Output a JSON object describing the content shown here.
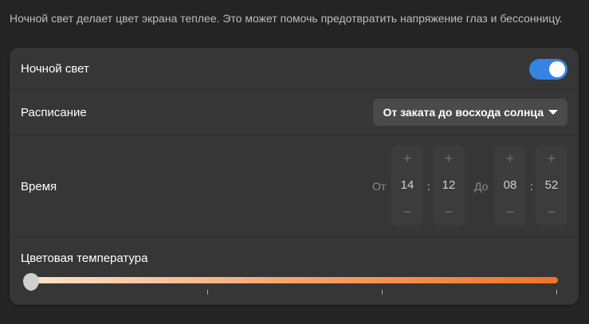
{
  "description": "Ночной свет делает цвет экрана теплее. Это может помочь предотвратить напряжение глаз и бессонницу.",
  "night_light": {
    "label": "Ночной свет",
    "enabled": true,
    "accent": "#3584e4"
  },
  "schedule": {
    "label": "Расписание",
    "value": "От заката до восхода солнца"
  },
  "time": {
    "label": "Время",
    "from_label": "От",
    "to_label": "До",
    "from_hour": "14",
    "from_minute": "12",
    "to_hour": "08",
    "to_minute": "52",
    "separator": ":",
    "plus": "+",
    "minus": "−"
  },
  "temperature": {
    "label": "Цветовая температура",
    "value_fraction": 0.0
  }
}
